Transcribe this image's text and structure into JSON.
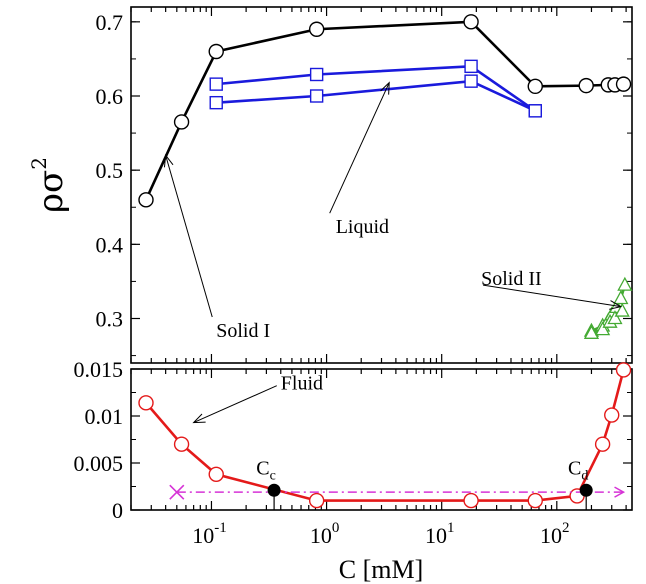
{
  "chart_data": [
    {
      "type": "line",
      "panel": "top",
      "xscale": "log",
      "xlim": [
        0.02,
        450
      ],
      "ylim": [
        0.24,
        0.72
      ],
      "ylabel": "ρσ",
      "ylabel_sup": "2",
      "yticks": [
        "0.3",
        "0.4",
        "0.5",
        "0.6",
        "0.7"
      ],
      "series": [
        {
          "color": "#000000",
          "marker": "circle",
          "x": [
            0.027,
            0.055,
            0.11,
            0.82,
            18,
            65,
            180,
            280,
            320,
            380
          ],
          "y": [
            0.46,
            0.565,
            0.66,
            0.69,
            0.7,
            0.613,
            0.614,
            0.615,
            0.615,
            0.616
          ]
        },
        {
          "color": "#1a1adc",
          "marker": "square",
          "x": [
            0.11,
            0.82,
            18,
            65
          ],
          "y": [
            0.616,
            0.629,
            0.64,
            0.58
          ]
        },
        {
          "color": "#1a1adc",
          "marker": "square",
          "x": [
            0.11,
            0.82,
            18,
            65
          ],
          "y": [
            0.591,
            0.6,
            0.62,
            0.58
          ]
        },
        {
          "color": "#44aa33",
          "marker": "triangle",
          "x": [
            200,
            250,
            280,
            300,
            330,
            360,
            390
          ],
          "y": [
            0.283,
            0.29,
            0.297,
            0.305,
            0.315,
            0.327,
            0.345
          ]
        },
        {
          "color": "#44aa33",
          "marker": "triangle",
          "x": [
            200,
            250,
            290,
            320,
            370
          ],
          "y": [
            0.28,
            0.285,
            0.295,
            0.3,
            0.31
          ]
        }
      ],
      "annotations": [
        {
          "text": "Solid I",
          "x": 0.11,
          "y": 0.275,
          "arrow_to": [
            0.04,
            0.52
          ]
        },
        {
          "text": "Liquid",
          "x": 1.2,
          "y": 0.415,
          "arrow_to": [
            3.5,
            0.618
          ]
        },
        {
          "text": "Solid II",
          "x": 22,
          "y": 0.345,
          "arrow_to": [
            360,
            0.316
          ]
        }
      ]
    },
    {
      "type": "line",
      "panel": "bottom",
      "xscale": "log",
      "xlim": [
        0.02,
        450
      ],
      "ylim": [
        0,
        0.015
      ],
      "xlabel": "C [mM]",
      "xticks": [
        {
          "base": "10",
          "exp": "-1",
          "value": 0.1
        },
        {
          "base": "10",
          "exp": "0",
          "value": 1
        },
        {
          "base": "10",
          "exp": "1",
          "value": 10
        },
        {
          "base": "10",
          "exp": "2",
          "value": 100
        }
      ],
      "yticks": [
        "0",
        "0.005",
        "0.01",
        "0.015"
      ],
      "series": [
        {
          "color": "#e41a1a",
          "marker": "circle",
          "x": [
            0.027,
            0.055,
            0.11,
            0.82,
            18,
            65,
            150,
            250,
            300,
            380
          ],
          "y": [
            0.0114,
            0.007,
            0.0038,
            0.001,
            0.001,
            0.001,
            0.0015,
            0.007,
            0.0101,
            0.0149
          ]
        },
        {
          "color": "#d633d6",
          "style": "dash-dot",
          "marker": "x-start",
          "x": [
            0.05,
            380
          ],
          "y": [
            0.0019,
            0.0019
          ]
        }
      ],
      "points": [
        {
          "label_base": "C",
          "label_sub": "c",
          "x": 0.35,
          "y": 0.0021
        },
        {
          "label_base": "C",
          "label_sub": "d",
          "x": 180,
          "y": 0.0021
        }
      ],
      "annotations": [
        {
          "text": "Fluid",
          "x": 0.4,
          "y": 0.0128,
          "arrow_to": [
            0.07,
            0.0093
          ]
        }
      ]
    }
  ]
}
